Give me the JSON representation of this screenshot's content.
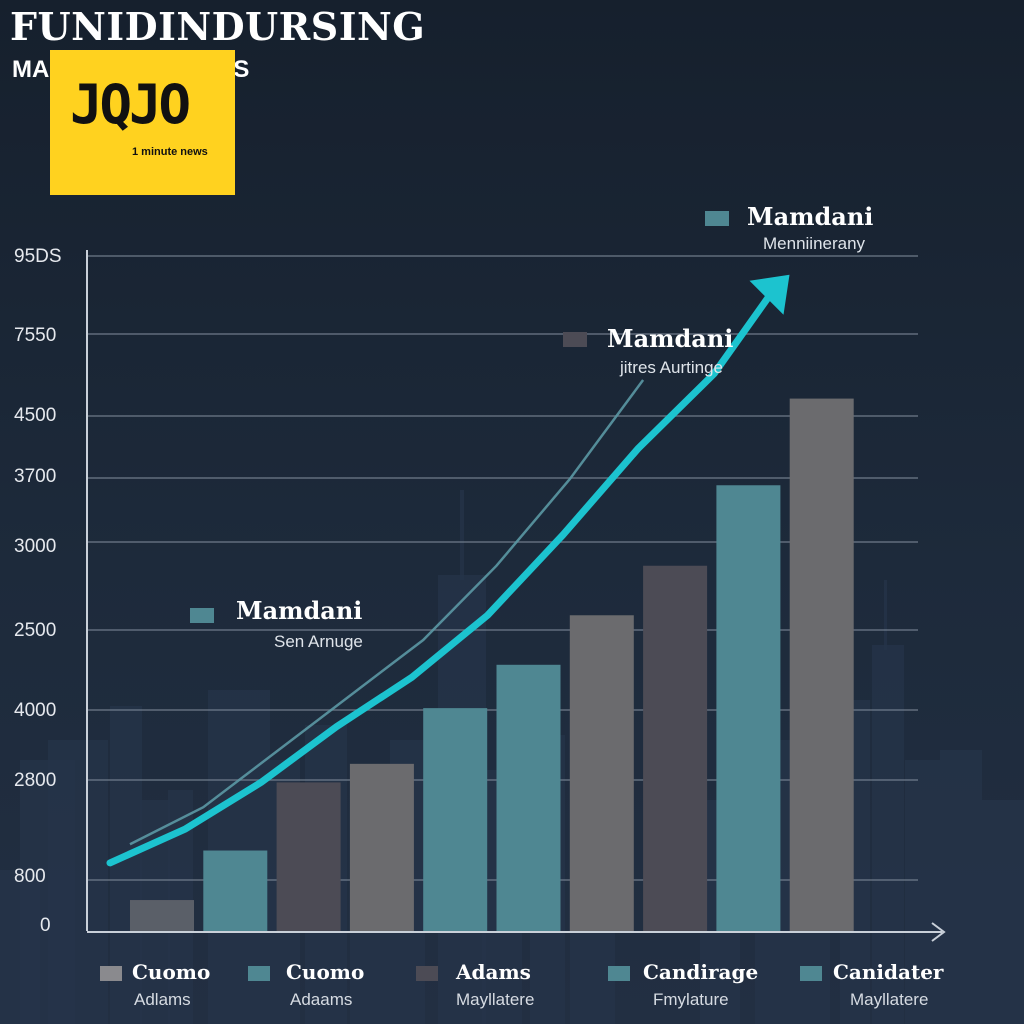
{
  "header": {
    "title": "FUNIDINDURSING",
    "subtitle": "MA",
    "subtitle_tail": "ALS"
  },
  "logo": {
    "mark": "JQJO",
    "tagline": "1 minute news",
    "color": "#ffd21f"
  },
  "chart_data": {
    "type": "bar",
    "y_ticks": [
      "95DS",
      "7550",
      "4500",
      "3700",
      "3000",
      "2500",
      "4000",
      "2800",
      "800",
      "0"
    ],
    "values": [
      500,
      1300,
      2400,
      2700,
      3600,
      4300,
      5100,
      5900,
      7200,
      8600
    ],
    "bar_colors": [
      "#5a5f68",
      "#4f8792",
      "#4c4b55",
      "#6b6b6e",
      "#4f8792",
      "#4f8792",
      "#6b6b6e",
      "#4c4b55",
      "#4f8792",
      "#6b6b6e"
    ],
    "trend_main": [
      1100,
      1650,
      2400,
      3300,
      4100,
      5100,
      6400,
      7800,
      9000,
      10600
    ],
    "trend_thin": [
      1400,
      2000,
      2900,
      3800,
      4700,
      5900,
      7300,
      8900
    ],
    "ylim": [
      0,
      11000
    ],
    "xlabel": "",
    "ylabel": "",
    "callouts": [
      {
        "name": "Mamdani",
        "sub": "Sen Arnuge",
        "color": "#4f8792"
      },
      {
        "name": "Mamdani",
        "sub": "jitres Aurtinge",
        "color": "#4c4b55"
      },
      {
        "name": "Mamdani",
        "sub": "Menniinerany",
        "color": "#4f8792"
      }
    ],
    "legend": [
      {
        "name": "Cuomo",
        "sub": "Adlams",
        "color": "#8a8a8e"
      },
      {
        "name": "Cuomo",
        "sub": "Adaams",
        "color": "#4f8792"
      },
      {
        "name": "Adams",
        "sub": "Mayllatere",
        "color": "#4c4b55"
      },
      {
        "name": "Candirage",
        "sub": "Fmylature",
        "color": "#4f8792"
      },
      {
        "name": "Canidater",
        "sub": "Mayllatere",
        "color": "#4f8792"
      }
    ],
    "grid": true,
    "accent_color": "#1cc3cf"
  }
}
